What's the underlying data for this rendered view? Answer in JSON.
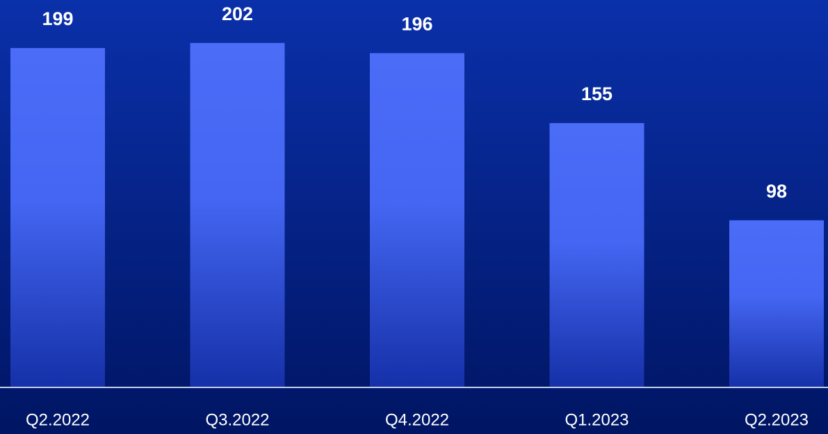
{
  "chart_data": {
    "type": "bar",
    "categories": [
      "Q2.2022",
      "Q3.2022",
      "Q4.2022",
      "Q1.2023",
      "Q2.2023"
    ],
    "values": [
      199,
      202,
      196,
      155,
      98
    ],
    "color": "#4a6cf7"
  }
}
